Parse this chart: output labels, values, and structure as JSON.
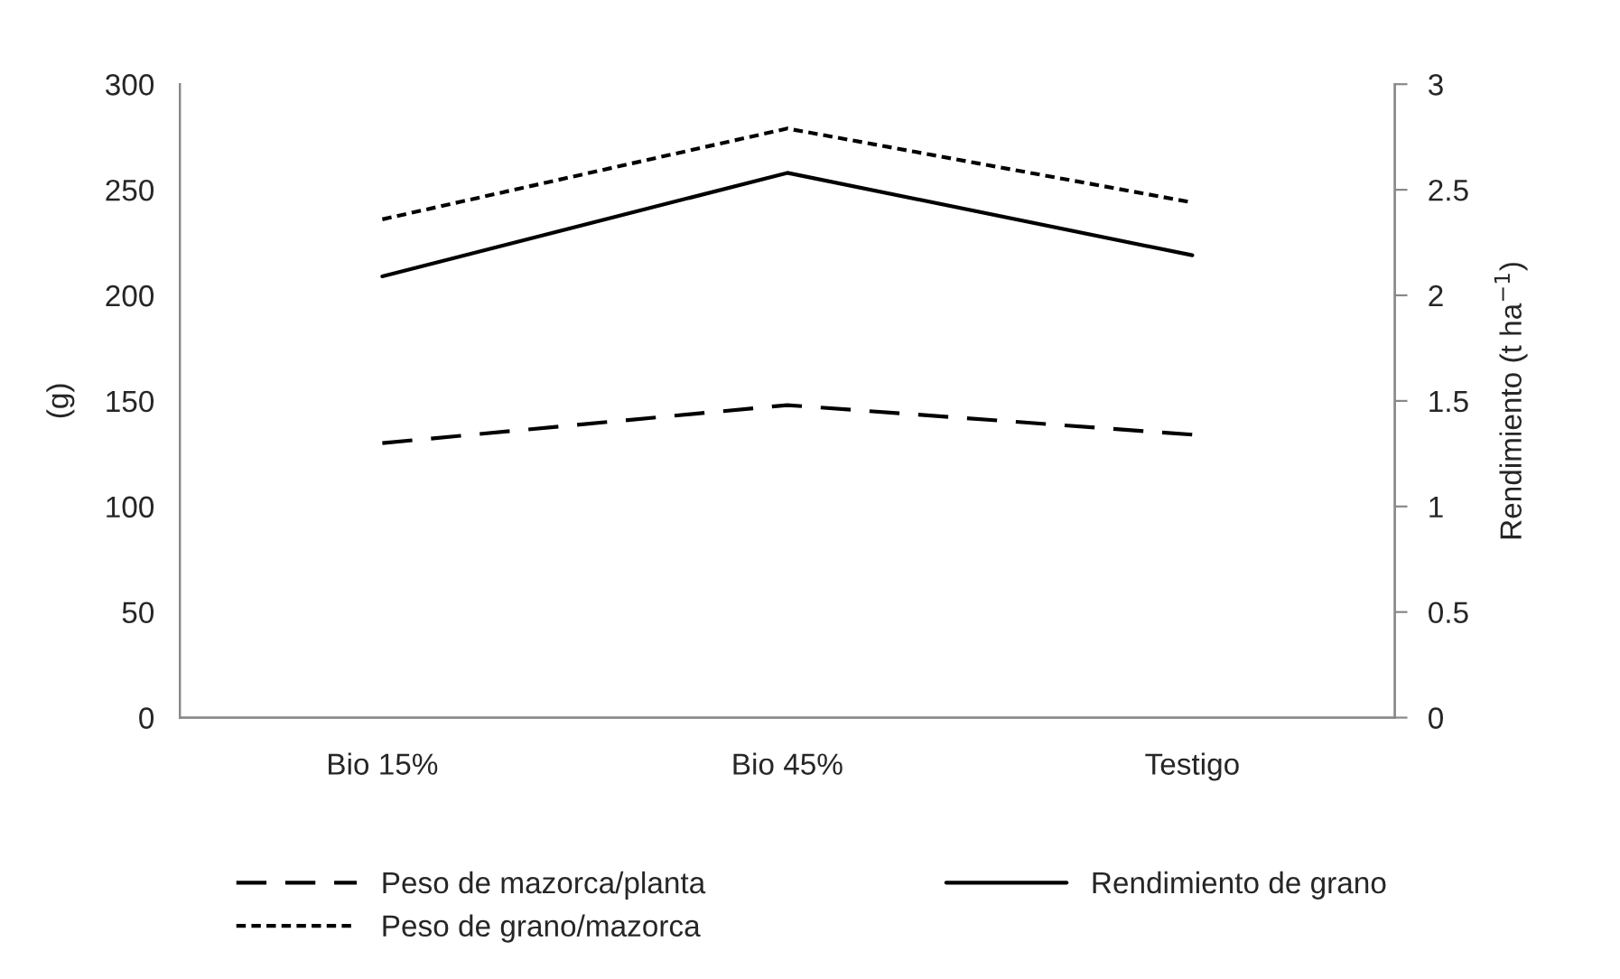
{
  "chart_data": {
    "type": "line",
    "categories": [
      "Bio 15%",
      "Bio 45%",
      "Testigo"
    ],
    "ylabel": "(g)",
    "y2label": "Rendimiento (t ha$^{−1}$)",
    "ylim": [
      0,
      300
    ],
    "yticks": [
      0,
      50,
      100,
      150,
      200,
      250,
      300
    ],
    "y2lim": [
      0,
      3
    ],
    "y2ticks": [
      0,
      0.5,
      1,
      1.5,
      2,
      2.5,
      3
    ],
    "grid": false,
    "legend": "bottom",
    "marker": "none",
    "series": [
      {
        "name": "Peso de mazorca/planta",
        "color": "#000000",
        "line_style": "dashed",
        "values": [
          130,
          148,
          134
        ]
      },
      {
        "name": "Peso de grano/mazorca",
        "color": "#000000",
        "line_style": "dotted",
        "values": [
          236,
          279,
          244
        ]
      },
      {
        "name": "Rendimiento de grano",
        "color": "#000000",
        "line_style": "solid",
        "axis": "y2",
        "values": [
          2.09,
          2.58,
          2.19
        ]
      }
    ]
  }
}
